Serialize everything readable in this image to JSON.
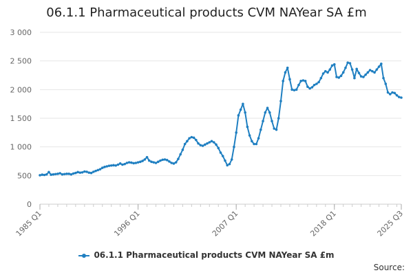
{
  "colors": {
    "series": "#1f7fc1",
    "grid": "#e6e6e6",
    "axis": "#cccccc"
  },
  "chart_data": {
    "type": "line",
    "title": "06.1.1 Pharmaceutical products CVM NAYear SA £m",
    "xlabel": "",
    "ylabel": "",
    "ylim": [
      0,
      3000
    ],
    "yticks": [
      0,
      500,
      1000,
      1500,
      2000,
      2500,
      3000
    ],
    "ytick_labels": [
      "0",
      "500",
      "1 000",
      "1 500",
      "2 000",
      "2 500",
      "3 000"
    ],
    "x_range_index": [
      0,
      162
    ],
    "xtick_labels": [
      {
        "label": "1985 Q1",
        "index": 0
      },
      {
        "label": "1996 Q1",
        "index": 44
      },
      {
        "label": "2007 Q1",
        "index": 88
      },
      {
        "label": "2018 Q1",
        "index": 132
      },
      {
        "label": "2025 Q3",
        "index": 162
      }
    ],
    "series": [
      {
        "name": "06.1.1 Pharmaceutical products CVM NAYear SA £m",
        "start": "1985 Q1",
        "frequency": "quarterly",
        "values": [
          505,
          515,
          510,
          520,
          560,
          515,
          520,
          525,
          530,
          540,
          520,
          525,
          530,
          530,
          520,
          535,
          545,
          560,
          550,
          555,
          570,
          565,
          550,
          545,
          565,
          580,
          595,
          610,
          635,
          650,
          660,
          670,
          675,
          680,
          675,
          690,
          710,
          690,
          700,
          720,
          730,
          725,
          715,
          720,
          730,
          740,
          755,
          780,
          820,
          760,
          740,
          730,
          720,
          740,
          760,
          775,
          780,
          770,
          745,
          720,
          710,
          730,
          790,
          870,
          950,
          1050,
          1100,
          1150,
          1170,
          1160,
          1120,
          1060,
          1030,
          1020,
          1040,
          1060,
          1080,
          1100,
          1080,
          1040,
          980,
          900,
          840,
          760,
          680,
          700,
          780,
          1000,
          1250,
          1550,
          1650,
          1750,
          1600,
          1350,
          1200,
          1100,
          1050,
          1050,
          1150,
          1300,
          1450,
          1600,
          1680,
          1600,
          1450,
          1320,
          1300,
          1500,
          1800,
          2150,
          2300,
          2380,
          2180,
          2000,
          1990,
          2000,
          2080,
          2150,
          2160,
          2150,
          2050,
          2020,
          2040,
          2080,
          2100,
          2130,
          2200,
          2280,
          2320,
          2300,
          2350,
          2420,
          2440,
          2220,
          2210,
          2240,
          2300,
          2380,
          2470,
          2460,
          2350,
          2200,
          2360,
          2290,
          2230,
          2220,
          2260,
          2300,
          2340,
          2320,
          2300,
          2350,
          2400,
          2450,
          2200,
          2100,
          1950,
          1920,
          1950,
          1940,
          1900,
          1870,
          1860
        ]
      }
    ]
  },
  "legend": {
    "label": "06.1.1 Pharmaceutical products CVM NAYear SA £m",
    "position": "bottom"
  },
  "source_label": "Source:"
}
